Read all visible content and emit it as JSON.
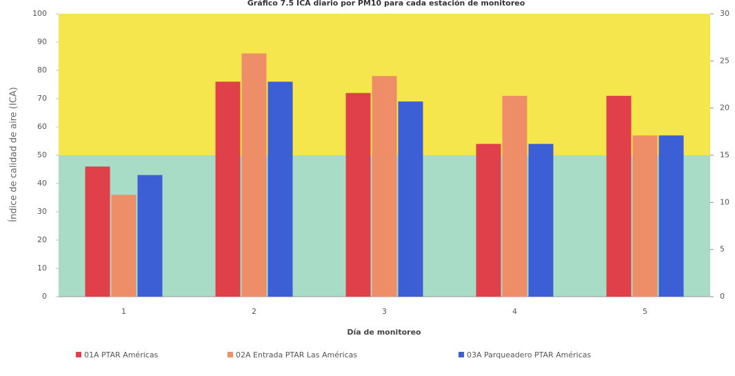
{
  "chart_data": {
    "type": "bar",
    "title": "Gráfico 7.5 ICA diario por PM10 para cada estación de monitoreo",
    "x_label": "Día de monitoreo",
    "y_label": "Índice de calidad de aire (ICA)",
    "categories": [
      "1",
      "2",
      "3",
      "4",
      "5"
    ],
    "series": [
      {
        "name": "01A PTAR Américas",
        "color": "#e0404a",
        "values": [
          46,
          76,
          72,
          54,
          71
        ]
      },
      {
        "name": "02A Entrada PTAR Las Américas",
        "color": "#ee8e68",
        "values": [
          36,
          86,
          78,
          71,
          57
        ]
      },
      {
        "name": "03A Parqueadero PTAR Américas",
        "color": "#3d5fd6",
        "values": [
          43,
          76,
          69,
          54,
          57
        ]
      }
    ],
    "bands": [
      {
        "from": 0,
        "to": 50,
        "color": "#a9dcc6"
      },
      {
        "from": 50,
        "to": 100,
        "color": "#f4e64c"
      }
    ],
    "ylim": [
      0,
      100
    ],
    "yticks": [
      0,
      10,
      20,
      30,
      40,
      50,
      60,
      70,
      80,
      90,
      100
    ],
    "y2lim": [
      0,
      30
    ],
    "y2ticks": [
      0,
      5,
      10,
      15,
      20,
      25,
      30
    ],
    "legend": "bottom"
  }
}
